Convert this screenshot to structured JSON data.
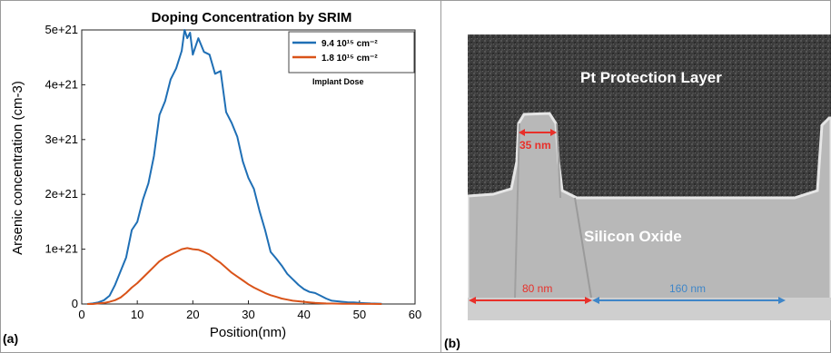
{
  "panel_a_label": "(a)",
  "panel_b_label": "(b)",
  "chart_data": {
    "type": "line",
    "title": "Doping Concentration by SRIM",
    "xlabel": "Position(nm)",
    "ylabel": "Arsenic concentration (cm-3)",
    "xlim": [
      0,
      60
    ],
    "ylim": [
      0,
      5e+21
    ],
    "xticks": [
      0,
      10,
      20,
      30,
      40,
      50,
      60
    ],
    "xtick_labels": [
      "0",
      "10",
      "20",
      "30",
      "40",
      "50",
      "60"
    ],
    "yticks": [
      0,
      1e+21,
      2e+21,
      3e+21,
      4e+21,
      5e+21
    ],
    "ytick_labels": [
      "0",
      "1e+21",
      "2e+21",
      "3e+21",
      "4e+21",
      "5e+21"
    ],
    "legend_title": "Implant Dose",
    "legend_position": "top-right",
    "grid": false,
    "series": [
      {
        "name": "9.4 10¹⁵ cm⁻²",
        "color": "#1f6fb5",
        "x": [
          1,
          2,
          3,
          4,
          5,
          6,
          7,
          8,
          9,
          10,
          11,
          12,
          13,
          14,
          15,
          16,
          17,
          18,
          18.5,
          19,
          19.5,
          20,
          21,
          22,
          23,
          24,
          25,
          26,
          27,
          28,
          29,
          30,
          31,
          32,
          33,
          34,
          35,
          36,
          37,
          38,
          39,
          40,
          41,
          42,
          43,
          44,
          45,
          46,
          47,
          48,
          49,
          50,
          51,
          52,
          54
        ],
        "y": [
          0,
          1e+19,
          3e+19,
          7e+19,
          1.5e+20,
          3.5e+20,
          6e+20,
          8.5e+20,
          1.35e+21,
          1.5e+21,
          1.9e+21,
          2.2e+21,
          2.7e+21,
          3.45e+21,
          3.7e+21,
          4.1e+21,
          4.3e+21,
          4.62e+21,
          5e+21,
          4.85e+21,
          4.95e+21,
          4.55e+21,
          4.85e+21,
          4.6e+21,
          4.55e+21,
          4.2e+21,
          4.25e+21,
          3.5e+21,
          3.3e+21,
          3.05e+21,
          2.6e+21,
          2.3e+21,
          2.1e+21,
          1.7e+21,
          1.35e+21,
          9.5e+20,
          8.3e+20,
          7e+20,
          5.5e+20,
          4.5e+20,
          3.5e+20,
          2.7e+20,
          2.2e+20,
          2e+20,
          1.5e+20,
          1e+20,
          6e+19,
          5e+19,
          4e+19,
          3e+19,
          3e+19,
          2e+19,
          1.5e+19,
          1e+19,
          5e+18
        ]
      },
      {
        "name": "1.8 10¹⁵ cm⁻²",
        "color": "#d95319",
        "x": [
          1,
          2,
          3,
          4,
          5,
          6,
          7,
          8,
          9,
          10,
          11,
          12,
          13,
          14,
          15,
          16,
          17,
          18,
          19,
          20,
          21,
          22,
          23,
          24,
          25,
          26,
          27,
          28,
          29,
          30,
          31,
          32,
          33,
          34,
          35,
          36,
          37,
          38,
          39,
          40,
          41,
          42,
          43,
          44,
          45,
          46,
          47,
          48,
          49,
          50,
          52,
          54
        ],
        "y": [
          0,
          0,
          1e+19,
          2e+19,
          4e+19,
          7e+19,
          1.2e+20,
          2e+20,
          3e+20,
          3.8e+20,
          4.8e+20,
          5.8e+20,
          6.8e+20,
          7.8e+20,
          8.5e+20,
          9e+20,
          9.5e+20,
          1e+21,
          1.02e+21,
          1e+21,
          9.9e+20,
          9.5e+20,
          9e+20,
          8.2e+20,
          7.5e+20,
          6.6e+20,
          5.7e+20,
          5e+20,
          4.3e+20,
          3.6e+20,
          3e+20,
          2.5e+20,
          2e+20,
          1.6e+20,
          1.3e+20,
          1e+20,
          8e+19,
          6e+19,
          5e+19,
          4e+19,
          3e+19,
          2e+19,
          1.5e+19,
          1e+19,
          8e+18,
          6e+18,
          5e+18,
          4e+18,
          3e+18,
          2e+18,
          1e+18,
          0
        ]
      }
    ]
  },
  "sem": {
    "top_layer_label": "Pt Protection Layer",
    "middle_label": "Silicon Oxide",
    "meas_top": "35 nm",
    "meas_bottom_left": "80 nm",
    "meas_bottom_right": "160 nm",
    "red_color": "#e8302a",
    "blue_color": "#3f86c8"
  }
}
